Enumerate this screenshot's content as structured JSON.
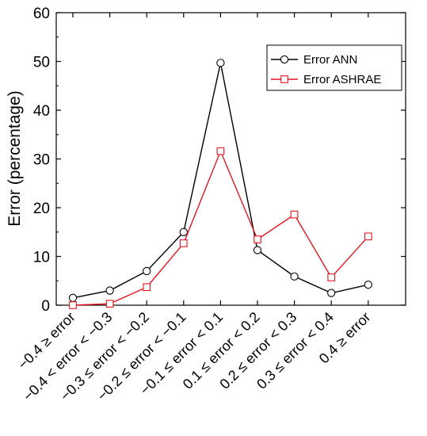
{
  "chart_data": {
    "type": "line",
    "ylabel": "Error (percentage)",
    "xlabel": "",
    "ylim": [
      0,
      60
    ],
    "yticks": [
      0,
      10,
      20,
      30,
      40,
      50,
      60
    ],
    "categories": [
      "−0.4 ≥ error",
      "−0.4 < error < −0.3",
      "−0.3 ≤ error < −0.2",
      "−0.2 ≤ error < −0.1",
      "−0.1 ≤ error < 0.1",
      "0.1 ≤ error < 0.2",
      "0.2 ≤ error < 0.3",
      "0.3 ≤ error < 0.4",
      "0.4 ≥ error"
    ],
    "series": [
      {
        "name": "Error ANN",
        "color": "#000000",
        "marker": "circle",
        "values": [
          1.5,
          3.0,
          7.0,
          15.0,
          49.7,
          11.3,
          5.9,
          2.5,
          4.2
        ]
      },
      {
        "name": "Error ASHRAE",
        "color": "#e8141e",
        "marker": "square",
        "values": [
          0.0,
          0.3,
          3.7,
          12.7,
          31.6,
          13.5,
          18.6,
          5.7,
          14.1
        ]
      }
    ],
    "legend_position": "top-right",
    "grid": false
  }
}
